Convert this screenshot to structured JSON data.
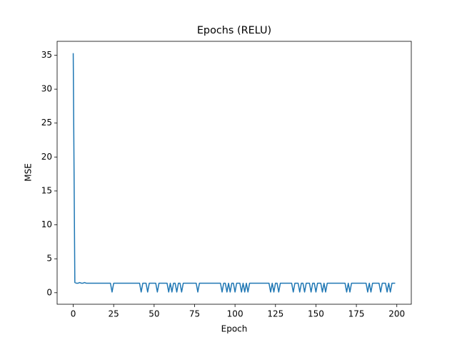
{
  "chart_data": {
    "type": "line",
    "title": "Epochs (RELU)",
    "x_label": "Epoch",
    "y_label": "MSE",
    "x": [
      0,
      1,
      2,
      3,
      4,
      5,
      6,
      7,
      8,
      9,
      10,
      11,
      12,
      13,
      14,
      15,
      16,
      17,
      18,
      19,
      20,
      21,
      22,
      23,
      24,
      25,
      26,
      27,
      28,
      29,
      30,
      31,
      32,
      33,
      34,
      35,
      36,
      37,
      38,
      39,
      40,
      41,
      42,
      43,
      44,
      45,
      46,
      47,
      48,
      49,
      50,
      51,
      52,
      53,
      54,
      55,
      56,
      57,
      58,
      59,
      60,
      61,
      62,
      63,
      64,
      65,
      66,
      67,
      68,
      69,
      70,
      71,
      72,
      73,
      74,
      75,
      76,
      77,
      78,
      79,
      80,
      81,
      82,
      83,
      84,
      85,
      86,
      87,
      88,
      89,
      90,
      91,
      92,
      93,
      94,
      95,
      96,
      97,
      98,
      99,
      100,
      101,
      102,
      103,
      104,
      105,
      106,
      107,
      108,
      109,
      110,
      111,
      112,
      113,
      114,
      115,
      116,
      117,
      118,
      119,
      120,
      121,
      122,
      123,
      124,
      125,
      126,
      127,
      128,
      129,
      130,
      131,
      132,
      133,
      134,
      135,
      136,
      137,
      138,
      139,
      140,
      141,
      142,
      143,
      144,
      145,
      146,
      147,
      148,
      149,
      150,
      151,
      152,
      153,
      154,
      155,
      156,
      157,
      158,
      159,
      160,
      161,
      162,
      163,
      164,
      165,
      166,
      167,
      168,
      169,
      170,
      171,
      172,
      173,
      174,
      175,
      176,
      177,
      178,
      179,
      180,
      181,
      182,
      183,
      184,
      185,
      186,
      187,
      188,
      189,
      190,
      191,
      192,
      193,
      194,
      195,
      196,
      197,
      198,
      199
    ],
    "values": [
      35.3,
      1.5,
      1.4,
      1.4,
      1.5,
      1.4,
      1.4,
      1.5,
      1.4,
      1.4,
      1.4,
      1.4,
      1.4,
      1.4,
      1.4,
      1.4,
      1.4,
      1.4,
      1.4,
      1.4,
      1.4,
      1.4,
      1.4,
      1.4,
      0.1,
      1.4,
      1.4,
      1.4,
      1.4,
      1.4,
      1.4,
      1.4,
      1.4,
      1.4,
      1.4,
      1.4,
      1.4,
      1.4,
      1.4,
      1.4,
      1.4,
      1.4,
      0.1,
      1.4,
      1.4,
      1.4,
      0.1,
      1.4,
      1.4,
      1.4,
      1.4,
      1.4,
      0.1,
      1.4,
      1.4,
      1.4,
      1.4,
      1.4,
      1.4,
      0.1,
      1.4,
      0.1,
      1.4,
      1.4,
      0.1,
      1.4,
      1.4,
      0.1,
      1.4,
      1.4,
      1.4,
      1.4,
      1.4,
      1.4,
      1.4,
      1.4,
      1.4,
      0.1,
      1.4,
      1.4,
      1.4,
      1.4,
      1.4,
      1.4,
      1.4,
      1.4,
      1.4,
      1.4,
      1.4,
      1.4,
      1.4,
      1.4,
      0.1,
      1.4,
      1.4,
      0.1,
      1.4,
      0.1,
      1.4,
      1.4,
      0.1,
      1.4,
      1.4,
      1.4,
      0.1,
      1.4,
      0.1,
      1.4,
      0.1,
      1.4,
      1.4,
      1.4,
      1.4,
      1.4,
      1.4,
      1.4,
      1.4,
      1.4,
      1.4,
      1.4,
      1.4,
      1.4,
      0.1,
      1.4,
      0.1,
      1.4,
      1.4,
      0.1,
      1.4,
      1.4,
      1.4,
      1.4,
      1.4,
      1.4,
      1.4,
      1.4,
      0.1,
      1.4,
      1.4,
      1.4,
      0.1,
      1.4,
      1.4,
      0.1,
      1.4,
      1.4,
      1.4,
      0.1,
      1.4,
      1.4,
      0.1,
      1.4,
      1.4,
      1.4,
      0.1,
      1.4,
      0.1,
      1.4,
      1.4,
      1.4,
      1.4,
      1.4,
      1.4,
      1.4,
      1.4,
      1.4,
      1.4,
      1.4,
      1.4,
      0.1,
      1.4,
      0.1,
      1.4,
      1.4,
      1.4,
      1.4,
      1.4,
      1.4,
      1.4,
      1.4,
      1.4,
      1.4,
      0.1,
      1.4,
      0.1,
      1.4,
      1.4,
      1.4,
      1.4,
      1.4,
      0.1,
      1.4,
      1.4,
      1.4,
      0.1,
      1.4,
      0.1,
      1.4,
      1.4,
      1.4
    ],
    "color": "#1f77b4",
    "xlim": [
      -9.95,
      208.95
    ],
    "xticks": [
      0,
      25,
      50,
      75,
      100,
      125,
      150,
      175,
      200
    ],
    "ylim": [
      -1.7,
      37.05
    ],
    "yticks": [
      0,
      5,
      10,
      15,
      20,
      25,
      30,
      35
    ]
  }
}
